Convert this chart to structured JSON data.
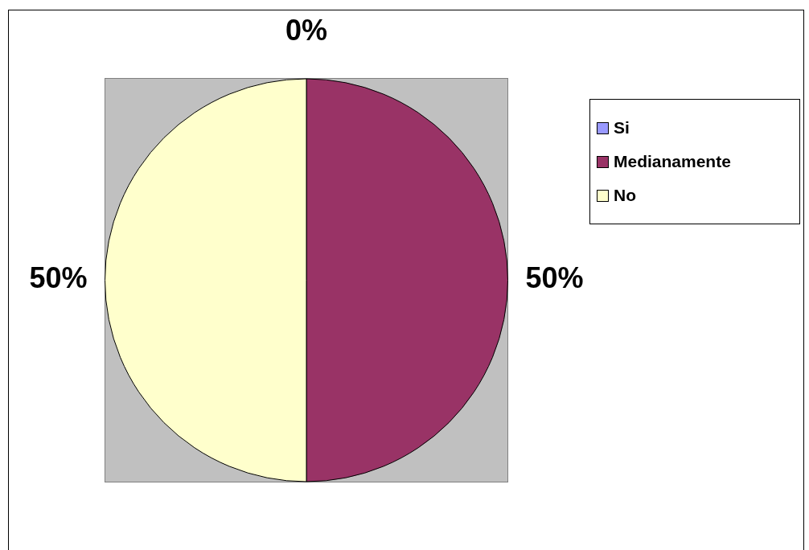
{
  "chart_data": {
    "type": "pie",
    "categories": [
      "Si",
      "Medianamente",
      "No"
    ],
    "values": [
      0,
      50,
      50
    ],
    "colors": [
      "#9999ff",
      "#993366",
      "#ffffcc"
    ],
    "value_labels": [
      "0%",
      "50%",
      "50%"
    ],
    "legend": "right"
  }
}
